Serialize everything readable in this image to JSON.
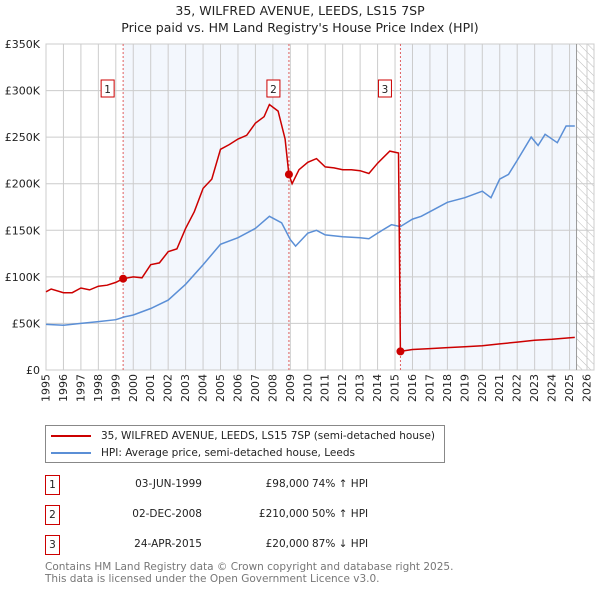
{
  "chart_data": {
    "type": "line",
    "title": "35, WILFRED AVENUE, LEEDS, LS15 7SP",
    "subtitle": "Price paid vs. HM Land Registry's House Price Index (HPI)",
    "xlabel": "",
    "ylabel": "",
    "xlim": [
      1995,
      2026
    ],
    "ylim": [
      0,
      350000
    ],
    "x_ticks": [
      "1995",
      "1996",
      "1997",
      "1998",
      "1999",
      "2000",
      "2001",
      "2002",
      "2003",
      "2004",
      "2005",
      "2006",
      "2007",
      "2008",
      "2009",
      "2010",
      "2011",
      "2012",
      "2013",
      "2014",
      "2015",
      "2016",
      "2017",
      "2018",
      "2019",
      "2020",
      "2021",
      "2022",
      "2023",
      "2024",
      "2025",
      "2026"
    ],
    "y_ticks": [
      {
        "v": 0,
        "label": "£0"
      },
      {
        "v": 50000,
        "label": "£50K"
      },
      {
        "v": 100000,
        "label": "£100K"
      },
      {
        "v": 150000,
        "label": "£150K"
      },
      {
        "v": 200000,
        "label": "£200K"
      },
      {
        "v": 250000,
        "label": "£250K"
      },
      {
        "v": 300000,
        "label": "£300K"
      },
      {
        "v": 350000,
        "label": "£350K"
      }
    ],
    "grid": true,
    "shaded_periods": [
      [
        1999.42,
        2008.92
      ],
      [
        2015.31,
        2025.4
      ]
    ],
    "forecast_hatch_from": 2025.4,
    "series": [
      {
        "name": "35, WILFRED AVENUE, LEEDS, LS15 7SP (semi-detached house)",
        "color": "#cc0000",
        "x": [
          1995,
          1995.3,
          1996,
          1996.5,
          1997,
          1997.5,
          1998,
          1998.5,
          1999,
          1999.42,
          2000,
          2000.5,
          2001,
          2001.5,
          2002,
          2002.5,
          2003,
          2003.5,
          2004,
          2004.5,
          2005,
          2005.5,
          2006,
          2006.5,
          2007,
          2007.5,
          2007.8,
          2008.3,
          2008.7,
          2008.92,
          2009.1,
          2009.5,
          2010,
          2010.5,
          2011,
          2011.5,
          2012,
          2012.5,
          2013,
          2013.5,
          2014,
          2014.7,
          2015.2,
          2015.31,
          2016,
          2017,
          2018,
          2019,
          2020,
          2021,
          2022,
          2023,
          2024,
          2025.3
        ],
        "y": [
          84000,
          87000,
          83000,
          83000,
          88000,
          86000,
          90000,
          91000,
          94000,
          98000,
          100000,
          99000,
          113000,
          115000,
          127000,
          130000,
          152000,
          170000,
          195000,
          205000,
          237000,
          242000,
          248000,
          252000,
          265000,
          272000,
          285000,
          278000,
          248000,
          210000,
          200000,
          215000,
          223000,
          227000,
          218000,
          217000,
          215000,
          215000,
          214000,
          211000,
          222000,
          235000,
          233000,
          20000,
          22000,
          23000,
          24000,
          25000,
          26000,
          28000,
          30000,
          32000,
          33000,
          35000
        ]
      },
      {
        "name": "HPI: Average price, semi-detached house, Leeds",
        "color": "#5b8fd6",
        "x": [
          1995,
          1996,
          1997,
          1998,
          1999,
          1999.5,
          2000,
          2001,
          2002,
          2003,
          2004,
          2005,
          2006,
          2007,
          2007.8,
          2008.5,
          2009,
          2009.3,
          2010,
          2010.5,
          2011,
          2012,
          2013,
          2013.5,
          2014,
          2014.8,
          2015.3,
          2016,
          2016.5,
          2017,
          2018,
          2019,
          2020,
          2020.5,
          2021,
          2021.5,
          2022,
          2022.8,
          2023.2,
          2023.6,
          2024.3,
          2024.8,
          2025.3
        ],
        "y": [
          49000,
          48000,
          50000,
          52000,
          54000,
          57000,
          59000,
          66000,
          75000,
          92000,
          113000,
          135000,
          142000,
          152000,
          165000,
          158000,
          140000,
          133000,
          147000,
          150000,
          145000,
          143000,
          142000,
          141000,
          147000,
          156000,
          154000,
          162000,
          165000,
          170000,
          180000,
          185000,
          192000,
          185000,
          205000,
          210000,
          225000,
          250000,
          241000,
          253000,
          244000,
          262000,
          262000
        ]
      }
    ],
    "sales": [
      {
        "n": "1",
        "x": 1999.42,
        "price": 98000,
        "date": "03-JUN-1999",
        "price_label": "£98,000",
        "hpi": "74% ↑ HPI"
      },
      {
        "n": "2",
        "x": 2008.92,
        "price": 210000,
        "date": "02-DEC-2008",
        "price_label": "£210,000",
        "hpi": "50% ↑ HPI"
      },
      {
        "n": "3",
        "x": 2015.31,
        "price": 20000,
        "date": "24-APR-2015",
        "price_label": "£20,000",
        "hpi": "87% ↓ HPI"
      }
    ]
  },
  "footer": {
    "line1": "Contains HM Land Registry data © Crown copyright and database right 2025.",
    "line2": "This data is licensed under the Open Government Licence v3.0."
  }
}
